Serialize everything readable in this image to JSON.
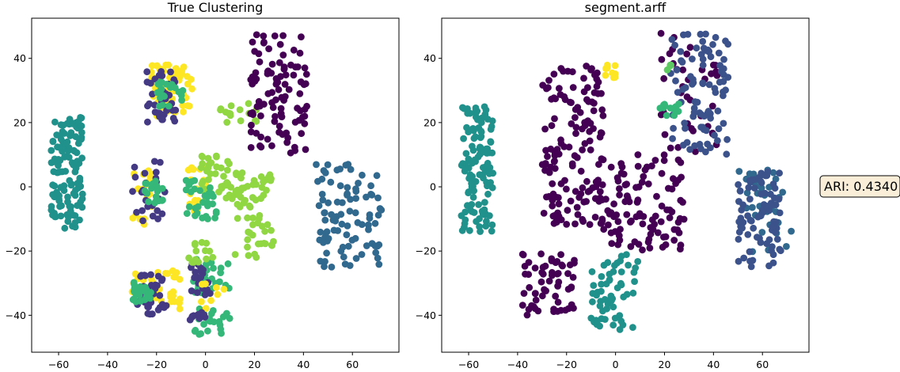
{
  "chart_data": [
    {
      "type": "scatter",
      "title": "True Clustering",
      "xlabel": "",
      "ylabel": "",
      "xlim": [
        -71,
        79
      ],
      "ylim": [
        -51.5,
        52.5
      ],
      "xticks": [
        -60,
        -40,
        -20,
        0,
        20,
        40,
        60
      ],
      "yticks": [
        -40,
        -20,
        0,
        20,
        40
      ],
      "xtick_labels": [
        "−60",
        "−40",
        "−20",
        "0",
        "20",
        "40",
        "60"
      ],
      "ytick_labels": [
        "−40",
        "−20",
        "0",
        "20",
        "40"
      ],
      "grid": false,
      "colors": [
        "#440154",
        "#443983",
        "#31688e",
        "#21918c",
        "#35b779",
        "#90d743",
        "#fde725"
      ],
      "clusters": [
        {
          "color": 6,
          "n": 60,
          "x": [
            -23,
            -5
          ],
          "y": [
            22,
            38
          ]
        },
        {
          "color": 1,
          "n": 35,
          "x": [
            -24,
            -12
          ],
          "y": [
            20,
            36
          ]
        },
        {
          "color": 4,
          "n": 22,
          "x": [
            -20,
            -9
          ],
          "y": [
            25,
            33
          ]
        },
        {
          "color": 6,
          "n": 40,
          "x": [
            -30,
            -10
          ],
          "y": [
            -38,
            -25
          ]
        },
        {
          "color": 1,
          "n": 35,
          "x": [
            -28,
            -16
          ],
          "y": [
            -40,
            -27
          ]
        },
        {
          "color": 4,
          "n": 25,
          "x": [
            -30,
            -22
          ],
          "y": [
            -36,
            -29
          ]
        },
        {
          "color": 6,
          "n": 20,
          "x": [
            -30,
            -22
          ],
          "y": [
            -12,
            5
          ]
        },
        {
          "color": 1,
          "n": 25,
          "x": [
            -30,
            -16
          ],
          "y": [
            -12,
            8
          ]
        },
        {
          "color": 4,
          "n": 18,
          "x": [
            -25,
            -17
          ],
          "y": [
            -5,
            2
          ]
        },
        {
          "color": 6,
          "n": 22,
          "x": [
            -7,
            0
          ],
          "y": [
            -8,
            8
          ]
        },
        {
          "color": 5,
          "n": 50,
          "x": [
            -2,
            15
          ],
          "y": [
            -4,
            10
          ]
        },
        {
          "color": 5,
          "n": 55,
          "x": [
            12,
            28
          ],
          "y": [
            -22,
            5
          ]
        },
        {
          "color": 4,
          "n": 30,
          "x": [
            -8,
            5
          ],
          "y": [
            -10,
            2
          ]
        },
        {
          "color": 4,
          "n": 30,
          "x": [
            -5,
            10
          ],
          "y": [
            -33,
            -22
          ]
        },
        {
          "color": 1,
          "n": 20,
          "x": [
            -6,
            2
          ],
          "y": [
            -35,
            -24
          ]
        },
        {
          "color": 5,
          "n": 15,
          "x": [
            -8,
            3
          ],
          "y": [
            -24,
            -17
          ]
        },
        {
          "color": 4,
          "n": 25,
          "x": [
            -5,
            10
          ],
          "y": [
            -46,
            -38
          ]
        },
        {
          "color": 6,
          "n": 8,
          "x": [
            -2,
            10
          ],
          "y": [
            -38,
            -30
          ]
        },
        {
          "color": 1,
          "n": 10,
          "x": [
            -7,
            0
          ],
          "y": [
            -42,
            -36
          ]
        },
        {
          "color": 5,
          "n": 15,
          "x": [
            5,
            22
          ],
          "y": [
            20,
            26
          ]
        },
        {
          "color": 0,
          "n": 100,
          "x": [
            18,
            42
          ],
          "y": [
            10,
            48
          ]
        },
        {
          "color": 3,
          "n": 120,
          "x": [
            -63,
            -50
          ],
          "y": [
            -14,
            25
          ]
        },
        {
          "color": 2,
          "n": 90,
          "x": [
            45,
            72
          ],
          "y": [
            -25,
            7
          ]
        }
      ]
    },
    {
      "type": "scatter",
      "title": "segment.arff",
      "xlabel": "",
      "ylabel": "",
      "xlim": [
        -71,
        79
      ],
      "ylim": [
        -51.5,
        52.5
      ],
      "xticks": [
        -60,
        -40,
        -20,
        0,
        20,
        40,
        60
      ],
      "yticks": [
        -40,
        -20,
        0,
        20,
        40
      ],
      "xtick_labels": [
        "−60",
        "−40",
        "−20",
        "0",
        "20",
        "40",
        "60"
      ],
      "ytick_labels": [
        "−40",
        "−20",
        "0",
        "20",
        "40"
      ],
      "grid": false,
      "colors": [
        "#440154",
        "#3b528b",
        "#31688e",
        "#21918c",
        "#35b779",
        "#5ec962",
        "#fde725"
      ],
      "clusters": [
        {
          "color": 0,
          "n": 150,
          "x": [
            -30,
            -5
          ],
          "y": [
            -12,
            38
          ]
        },
        {
          "color": 0,
          "n": 100,
          "x": [
            -5,
            28
          ],
          "y": [
            -20,
            10
          ]
        },
        {
          "color": 0,
          "n": 60,
          "x": [
            -38,
            -16
          ],
          "y": [
            -40,
            -20
          ]
        },
        {
          "color": 0,
          "n": 40,
          "x": [
            18,
            42
          ],
          "y": [
            10,
            48
          ]
        },
        {
          "color": 1,
          "n": 90,
          "x": [
            22,
            46
          ],
          "y": [
            10,
            48
          ]
        },
        {
          "color": 3,
          "n": 120,
          "x": [
            -63,
            -50
          ],
          "y": [
            -14,
            25
          ]
        },
        {
          "color": 3,
          "n": 60,
          "x": [
            -10,
            10
          ],
          "y": [
            -45,
            -21
          ]
        },
        {
          "color": 2,
          "n": 25,
          "x": [
            50,
            70
          ],
          "y": [
            -10,
            6
          ]
        },
        {
          "color": 2,
          "n": 10,
          "x": [
            55,
            72
          ],
          "y": [
            -22,
            0
          ]
        },
        {
          "color": 1,
          "n": 80,
          "x": [
            50,
            68
          ],
          "y": [
            -25,
            5
          ]
        },
        {
          "color": 4,
          "n": 15,
          "x": [
            18,
            26
          ],
          "y": [
            22,
            26
          ]
        },
        {
          "color": 5,
          "n": 4,
          "x": [
            19,
            23
          ],
          "y": [
            36,
            38
          ]
        },
        {
          "color": 6,
          "n": 10,
          "x": [
            -6,
            0
          ],
          "y": [
            34,
            38
          ]
        }
      ]
    }
  ],
  "annotation": {
    "ari_label": "ARI: 0.4340"
  }
}
